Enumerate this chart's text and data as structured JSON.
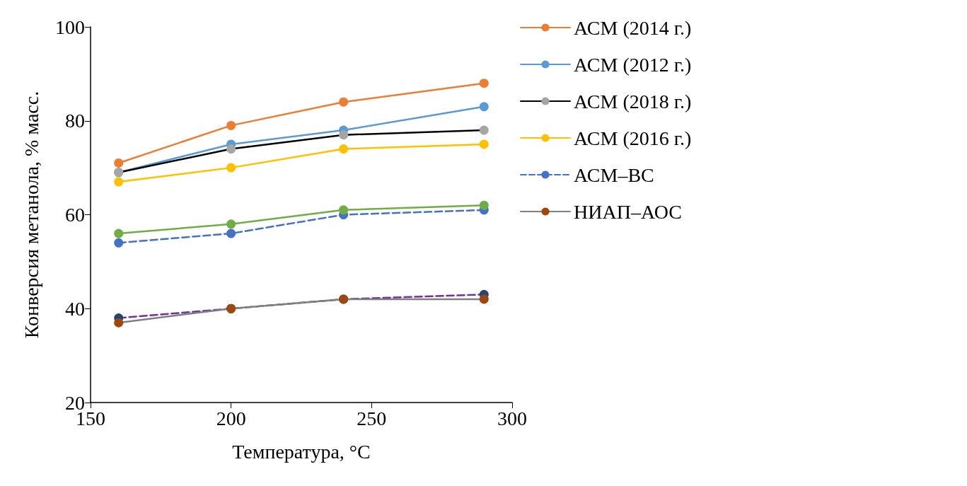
{
  "chart_data": {
    "type": "line",
    "xlabel": "Температура, °C",
    "ylabel": "Конверсия метанола, % масс.",
    "x": [
      160,
      200,
      240,
      290
    ],
    "xlim": [
      150,
      300
    ],
    "xticks": [
      150,
      200,
      250,
      300
    ],
    "ylim": [
      20,
      100
    ],
    "yticks": [
      20,
      40,
      60,
      80,
      100
    ],
    "grid": false,
    "legend": "right",
    "marker": "circle",
    "line_style": "solid",
    "series": [
      {
        "name": "АСМ (2014 г.)",
        "color": "#ed7d31",
        "values": [
          71,
          79,
          84,
          88
        ]
      },
      {
        "name": "АСМ (2012 г.)",
        "color": "#5b9bd5",
        "values": [
          69,
          75,
          78,
          83
        ]
      },
      {
        "name": "АСМ (2018 г.)",
        "color": "#000000",
        "colors": [
          "#a5a5a5",
          "#a5a5a5",
          "#a5a5a5",
          "#a5a5a5"
        ],
        "values": [
          69,
          74,
          77,
          78
        ]
      },
      {
        "name": "АСМ (2016 г.)",
        "color": "#ffc000",
        "values": [
          67,
          70,
          74,
          75
        ]
      },
      {
        "name": "АСМ–ВС",
        "color": "#4472c4",
        "line_style": "dashed",
        "values": [
          54,
          56,
          60,
          61
        ]
      },
      {
        "color": "#70ad47",
        "values": [
          56,
          58,
          61,
          62
        ]
      },
      {
        "color": "#7030a0",
        "colors": [
          "#264478",
          "#264478",
          "#264478",
          "#264478"
        ],
        "line_style": "dashed",
        "values": [
          38,
          40,
          42,
          43
        ]
      },
      {
        "name": "НИАП–АОС",
        "color": "#808080",
        "colors": [
          "#9e480e",
          "#9e480e",
          "#9e480e",
          "#9e480e"
        ],
        "values": [
          37,
          40,
          42,
          42
        ]
      }
    ]
  }
}
